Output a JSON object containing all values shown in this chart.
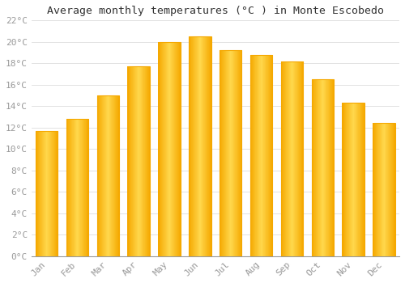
{
  "title": "Average monthly temperatures (°C ) in Monte Escobedo",
  "months": [
    "Jan",
    "Feb",
    "Mar",
    "Apr",
    "May",
    "Jun",
    "Jul",
    "Aug",
    "Sep",
    "Oct",
    "Nov",
    "Dec"
  ],
  "values": [
    11.7,
    12.8,
    15.0,
    17.7,
    20.0,
    20.5,
    19.2,
    18.8,
    18.2,
    16.5,
    14.3,
    12.4
  ],
  "bar_color_center": "#FFD84D",
  "bar_color_edge": "#F5A800",
  "background_color": "#FFFFFF",
  "grid_color": "#DDDDDD",
  "text_color": "#999999",
  "title_color": "#333333",
  "ylim": [
    0,
    22
  ],
  "ytick_step": 2,
  "title_fontsize": 9.5,
  "tick_fontsize": 8,
  "font_family": "monospace"
}
